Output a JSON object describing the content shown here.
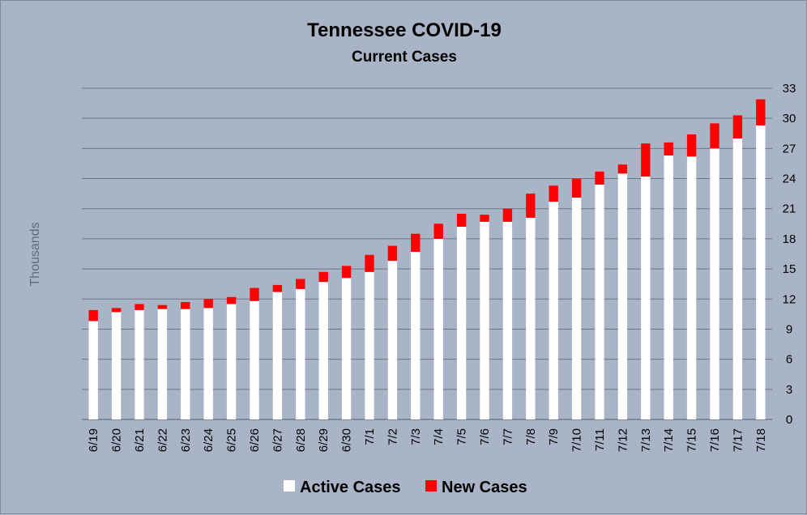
{
  "chart_data": {
    "type": "bar",
    "stacked": true,
    "title": "Tennessee COVID-19",
    "subtitle": "Current Cases",
    "ylabel": "Thousands",
    "xlabel": "",
    "ylim": [
      0,
      33
    ],
    "yticks": [
      0,
      3,
      6,
      9,
      12,
      15,
      18,
      21,
      24,
      27,
      30,
      33
    ],
    "y_axis_side": "right",
    "grid": true,
    "legend_position": "bottom",
    "categories": [
      "6/19",
      "6/20",
      "6/21",
      "6/22",
      "6/23",
      "6/24",
      "6/25",
      "6/26",
      "6/27",
      "6/28",
      "6/29",
      "6/30",
      "7/1",
      "7/2",
      "7/3",
      "7/4",
      "7/5",
      "7/6",
      "7/7",
      "7/8",
      "7/9",
      "7/10",
      "7/11",
      "7/12",
      "7/13",
      "7/14",
      "7/15",
      "7/16",
      "7/17",
      "7/18"
    ],
    "series": [
      {
        "name": "Active Cases",
        "color": "#ffffff",
        "values": [
          9.8,
          10.7,
          10.9,
          11.0,
          11.0,
          11.1,
          11.5,
          11.8,
          12.7,
          13.0,
          13.7,
          14.1,
          14.7,
          15.8,
          16.7,
          18.0,
          19.2,
          19.7,
          19.7,
          20.1,
          21.7,
          22.1,
          23.4,
          24.5,
          24.2,
          26.3,
          26.2,
          27.0,
          28.0,
          29.3
        ]
      },
      {
        "name": "New Cases",
        "color": "#ff0000",
        "values": [
          1.1,
          0.4,
          0.6,
          0.4,
          0.7,
          0.9,
          0.7,
          1.3,
          0.7,
          1.0,
          1.0,
          1.2,
          1.7,
          1.5,
          1.8,
          1.5,
          1.3,
          0.7,
          1.3,
          2.4,
          1.6,
          1.9,
          1.3,
          0.9,
          3.3,
          1.3,
          2.2,
          2.5,
          2.3,
          2.6
        ]
      }
    ]
  }
}
